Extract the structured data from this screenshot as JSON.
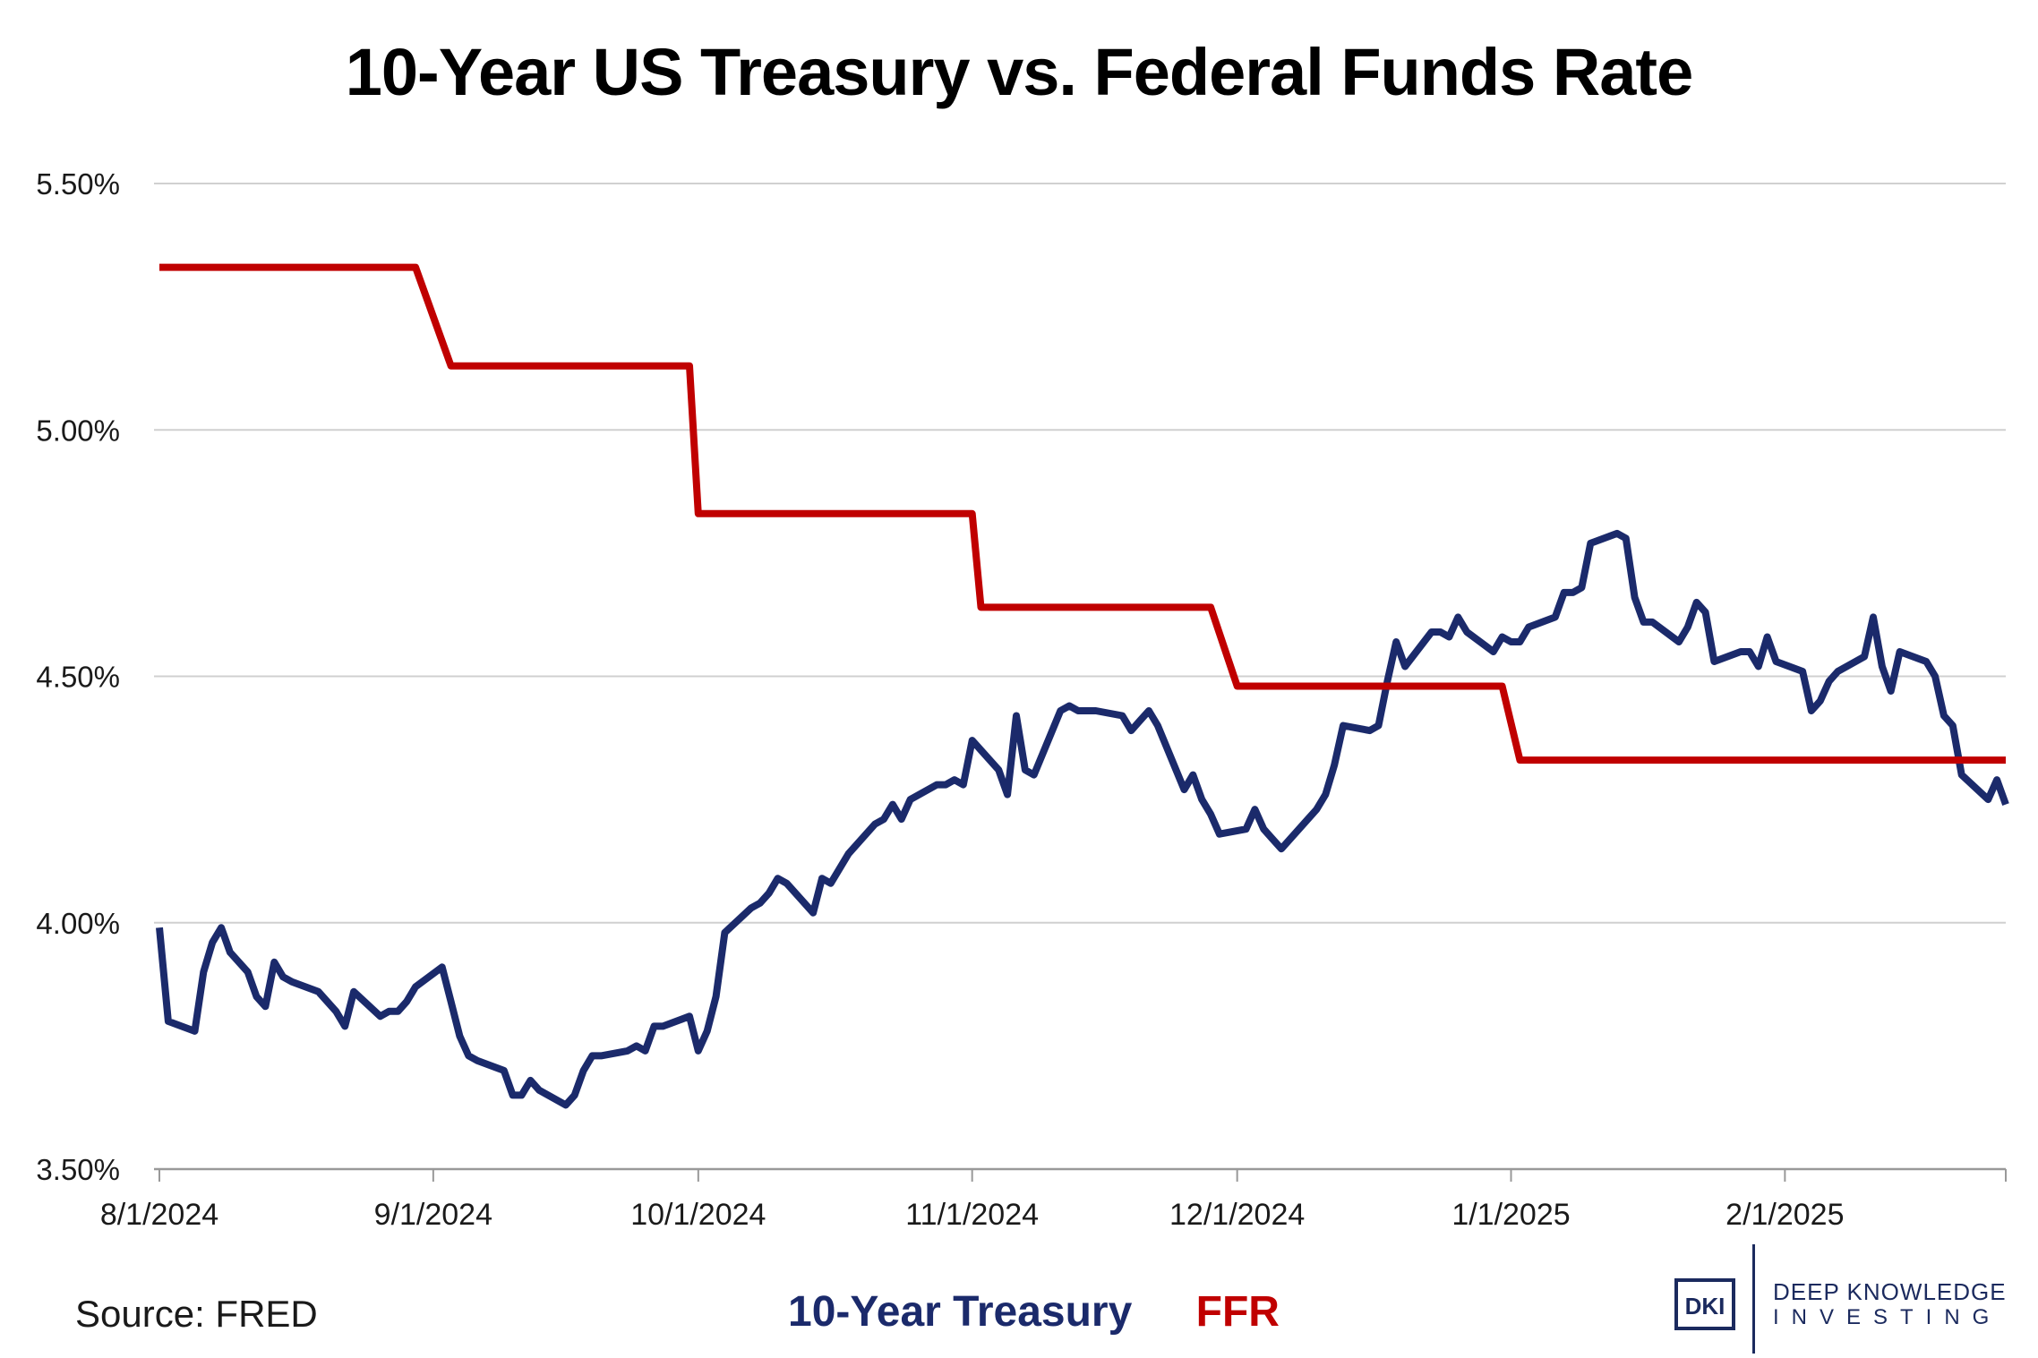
{
  "title": "10-Year US Treasury vs. Federal Funds Rate",
  "source": "Source: FRED",
  "logo": {
    "mark": "DKI",
    "line1": "DEEP KNOWLEDGE",
    "line2": "INVESTING"
  },
  "colors": {
    "treasury": "#1b2a6b",
    "ffr": "#c00000",
    "grid": "#d0d0d0",
    "axis": "#999999"
  },
  "chart_data": {
    "type": "line",
    "title": "10-Year US Treasury vs. Federal Funds Rate",
    "xlabel": "",
    "ylabel": "",
    "ylim": [
      3.5,
      5.5
    ],
    "xlim": [
      "8/1/2024",
      "2/28/2025"
    ],
    "y_ticks": [
      3.5,
      4.0,
      4.5,
      5.0,
      5.5
    ],
    "y_tick_labels": [
      "3.50%",
      "4.00%",
      "4.50%",
      "5.00%",
      "5.50%"
    ],
    "x_tick_labels": [
      "8/1/2024",
      "9/1/2024",
      "10/1/2024",
      "11/1/2024",
      "12/1/2024",
      "1/1/2025",
      "2/1/2025"
    ],
    "x_tick_days": [
      0,
      31,
      61,
      92,
      122,
      153,
      184
    ],
    "grid": true,
    "legend": "bottom-center",
    "series": [
      {
        "name": "10-Year Treasury",
        "x_days": [
          0,
          1,
          4,
          5,
          6,
          7,
          8,
          10,
          11,
          12,
          13,
          14,
          15,
          18,
          20,
          21,
          22,
          25,
          26,
          27,
          28,
          29,
          32,
          33,
          34,
          35,
          36,
          39,
          40,
          41,
          42,
          43,
          46,
          47,
          48,
          49,
          50,
          53,
          54,
          55,
          56,
          57,
          60,
          61,
          62,
          63,
          64,
          67,
          68,
          69,
          70,
          71,
          74,
          75,
          76,
          77,
          78,
          81,
          82,
          83,
          84,
          85,
          88,
          89,
          90,
          91,
          92,
          95,
          96,
          97,
          98,
          99,
          102,
          103,
          104,
          105,
          106,
          109,
          110,
          111,
          112,
          113,
          116,
          117,
          118,
          119,
          120,
          123,
          124,
          125,
          126,
          127,
          130,
          131,
          132,
          133,
          134,
          137,
          138,
          139,
          140,
          141,
          144,
          145,
          146,
          147,
          148,
          151,
          152,
          153,
          154,
          155,
          158,
          159,
          160,
          161,
          162,
          165,
          166,
          167,
          168,
          169,
          172,
          173,
          174,
          175,
          176,
          179,
          180,
          181,
          182,
          183,
          186,
          187,
          188,
          189,
          190,
          193,
          194,
          195,
          196,
          197,
          200,
          201,
          202,
          203,
          204,
          207,
          208,
          209
        ],
        "values": [
          3.99,
          3.8,
          3.78,
          3.9,
          3.96,
          3.99,
          3.94,
          3.9,
          3.85,
          3.83,
          3.92,
          3.89,
          3.88,
          3.86,
          3.82,
          3.79,
          3.86,
          3.81,
          3.82,
          3.82,
          3.84,
          3.87,
          3.91,
          3.84,
          3.77,
          3.73,
          3.72,
          3.7,
          3.65,
          3.65,
          3.68,
          3.66,
          3.63,
          3.65,
          3.7,
          3.73,
          3.73,
          3.74,
          3.75,
          3.74,
          3.79,
          3.79,
          3.81,
          3.74,
          3.78,
          3.85,
          3.98,
          4.03,
          4.04,
          4.06,
          4.09,
          4.08,
          4.02,
          4.09,
          4.08,
          4.11,
          4.14,
          4.2,
          4.21,
          4.24,
          4.21,
          4.25,
          4.28,
          4.28,
          4.29,
          4.28,
          4.37,
          4.31,
          4.26,
          4.42,
          4.31,
          4.3,
          4.43,
          4.44,
          4.43,
          4.43,
          4.43,
          4.42,
          4.39,
          4.41,
          4.43,
          4.4,
          4.27,
          4.3,
          4.25,
          4.22,
          4.18,
          4.19,
          4.23,
          4.19,
          4.17,
          4.15,
          4.21,
          4.23,
          4.26,
          4.32,
          4.4,
          4.39,
          4.4,
          4.49,
          4.57,
          4.52,
          4.59,
          4.59,
          4.58,
          4.62,
          4.59,
          4.55,
          4.58,
          4.57,
          4.57,
          4.6,
          4.62,
          4.67,
          4.67,
          4.68,
          4.77,
          4.79,
          4.78,
          4.66,
          4.61,
          4.61,
          4.57,
          4.6,
          4.65,
          4.63,
          4.53,
          4.55,
          4.55,
          4.52,
          4.58,
          4.53,
          4.51,
          4.43,
          4.45,
          4.49,
          4.51,
          4.54,
          4.62,
          4.52,
          4.47,
          4.55,
          4.53,
          4.5,
          4.42,
          4.4,
          4.3,
          4.25,
          4.29,
          4.24
        ]
      },
      {
        "name": "FFR",
        "x_days": [
          0,
          29,
          33,
          60,
          61,
          92,
          93,
          119,
          122,
          152,
          154,
          209
        ],
        "values": [
          5.33,
          5.33,
          5.13,
          5.13,
          4.83,
          4.83,
          4.64,
          4.64,
          4.48,
          4.48,
          4.33,
          4.33
        ]
      }
    ]
  }
}
